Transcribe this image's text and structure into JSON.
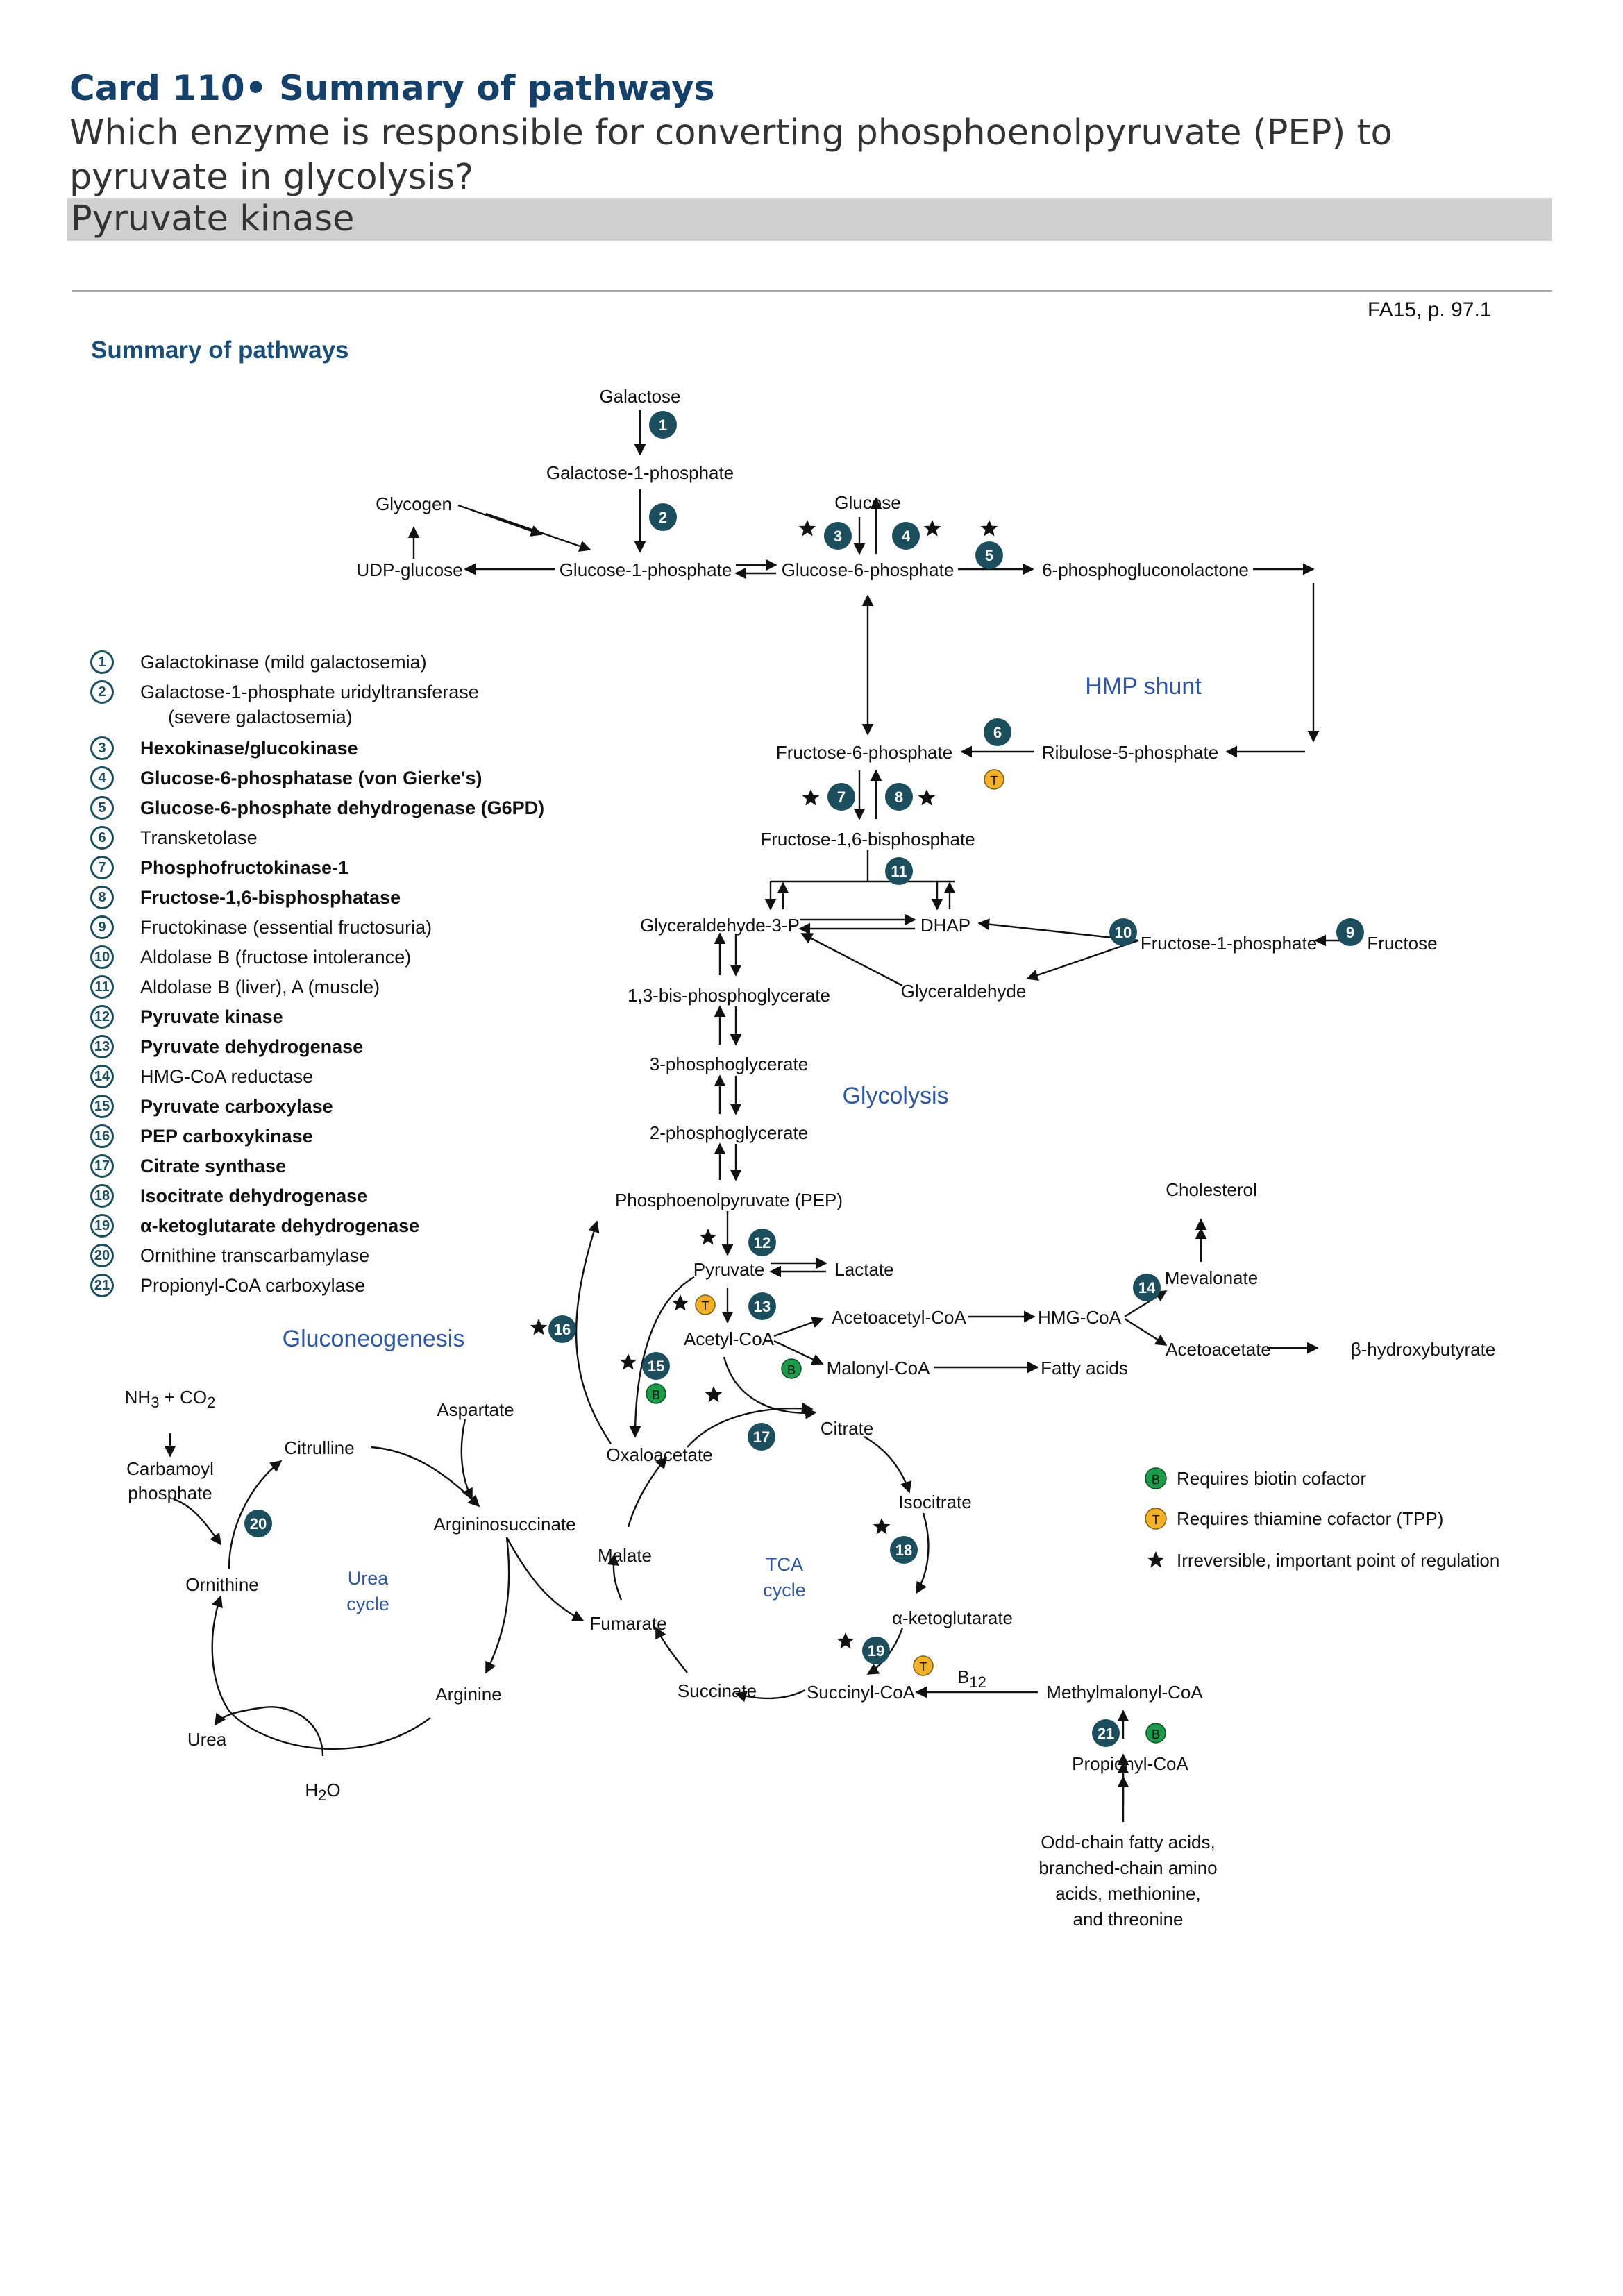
{
  "card": {
    "title": "Card 110• Summary of pathways",
    "question": "Which enzyme is responsible for converting phosphoenolpyruvate (PEP) to pyruvate in glycolysis?",
    "answer": "Pyruvate kinase",
    "reference": "FA15, p. 97.1"
  },
  "figure": {
    "title": "Summary of pathways",
    "metabolites": {
      "galactose": "Galactose",
      "galactose_1p": "Galactose-1-phosphate",
      "glycogen": "Glycogen",
      "udp_glucose": "UDP-glucose",
      "glucose_1p": "Glucose-1-phosphate",
      "glucose": "Glucose",
      "glucose_6p": "Glucose-6-phosphate",
      "pgl": "6-phosphogluconolactone",
      "f6p": "Fructose-6-phosphate",
      "r5p": "Ribulose-5-phosphate",
      "f16bp": "Fructose-1,6-bisphosphate",
      "g3p": "Glyceraldehyde-3-P",
      "dhap": "DHAP",
      "f1p": "Fructose-1-phosphate",
      "fructose": "Fructose",
      "glyceraldehyde": "Glyceraldehyde",
      "bpg13": "1,3-bis-phosphoglycerate",
      "pg3": "3-phosphoglycerate",
      "pg2": "2-phosphoglycerate",
      "pep": "Phosphoenolpyruvate (PEP)",
      "pyruvate": "Pyruvate",
      "lactate": "Lactate",
      "acetyl_coa": "Acetyl-CoA",
      "acetoacetyl_coa": "Acetoacetyl-CoA",
      "hmg_coa": "HMG-CoA",
      "mevalonate": "Mevalonate",
      "cholesterol": "Cholesterol",
      "acetoacetate": "Acetoacetate",
      "b_hydroxybutyrate": "β-hydroxybutyrate",
      "malonyl_coa": "Malonyl-CoA",
      "fatty_acids": "Fatty acids",
      "oxaloacetate": "Oxaloacetate",
      "citrate": "Citrate",
      "isocitrate": "Isocitrate",
      "a_kg": "α-ketoglutarate",
      "succinyl_coa": "Succinyl-CoA",
      "succinate": "Succinate",
      "fumarate": "Fumarate",
      "malate": "Malate",
      "methylmalonyl_coa": "Methylmalonyl-CoA",
      "propionyl_coa": "Propionyl-CoA",
      "odd_chain": [
        "Odd-chain fatty acids,",
        "branched-chain amino",
        "acids, methionine,",
        "and threonine"
      ],
      "aspartate": "Aspartate",
      "citrulline": "Citrulline",
      "argininosuccinate": "Argininosuccinate",
      "arginine": "Arginine",
      "ornithine": "Ornithine",
      "urea": "Urea",
      "water_h": "H",
      "water_sub": "2",
      "water_o": "O",
      "nh3_co2_a": "NH",
      "nh3_co2_sub1": "3",
      "nh3_co2_b": " + CO",
      "nh3_co2_sub2": "2",
      "carbamoyl_1": "Carbamoyl",
      "carbamoyl_2": "phosphate",
      "b12": "B",
      "b12_sub": "12"
    },
    "pathway_labels": {
      "hmp": "HMP shunt",
      "glycolysis": "Glycolysis",
      "gluconeogenesis": "Gluconeogenesis",
      "tca_1": "TCA",
      "tca_2": "cycle",
      "urea_1": "Urea",
      "urea_2": "cycle"
    },
    "legend": [
      {
        "num": "1",
        "label": "Galactokinase (mild galactosemia)",
        "bold": false
      },
      {
        "num": "2",
        "label": "Galactose-1-phosphate uridyltransferase",
        "cont": "(severe galactosemia)",
        "bold": false
      },
      {
        "num": "3",
        "label": "Hexokinase/glucokinase",
        "bold": true
      },
      {
        "num": "4",
        "label": "Glucose-6-phosphatase (von Gierke's)",
        "bold": true
      },
      {
        "num": "5",
        "label": "Glucose-6-phosphate dehydrogenase (G6PD)",
        "bold": true
      },
      {
        "num": "6",
        "label": "Transketolase",
        "bold": false
      },
      {
        "num": "7",
        "label": "Phosphofructokinase-1",
        "bold": true
      },
      {
        "num": "8",
        "label": "Fructose-1,6-bisphosphatase",
        "bold": true
      },
      {
        "num": "9",
        "label": "Fructokinase (essential fructosuria)",
        "bold": false
      },
      {
        "num": "10",
        "label": "Aldolase B (fructose intolerance)",
        "bold": false
      },
      {
        "num": "11",
        "label": "Aldolase B (liver), A (muscle)",
        "bold": false
      },
      {
        "num": "12",
        "label": "Pyruvate kinase",
        "bold": true
      },
      {
        "num": "13",
        "label": "Pyruvate dehydrogenase",
        "bold": true
      },
      {
        "num": "14",
        "label": "HMG-CoA reductase",
        "bold": false
      },
      {
        "num": "15",
        "label": "Pyruvate carboxylase",
        "bold": true
      },
      {
        "num": "16",
        "label": "PEP carboxykinase",
        "bold": true
      },
      {
        "num": "17",
        "label": "Citrate synthase",
        "bold": true
      },
      {
        "num": "18",
        "label": "Isocitrate dehydrogenase",
        "bold": true
      },
      {
        "num": "19",
        "label": "α-ketoglutarate dehydrogenase",
        "bold": true
      },
      {
        "num": "20",
        "label": "Ornithine transcarbamylase",
        "bold": false
      },
      {
        "num": "21",
        "label": "Propionyl-CoA carboxylase",
        "bold": false
      }
    ],
    "cofactor_key": {
      "biotin_letter": "B",
      "biotin": "Requires biotin cofactor",
      "thiamine_letter": "T",
      "thiamine": "Requires thiamine cofactor (TPP)",
      "irreversible": "Irreversible, important point of regulation"
    },
    "colors": {
      "title": "#14406a",
      "section_title": "#1a4d75",
      "enzyme_badge": "#1c4e5e",
      "pathway_label": "#2f58a0",
      "biotin": "#1e9b4a",
      "thiamine": "#f2b12b",
      "answer_bar": "#d0d0d0"
    }
  }
}
